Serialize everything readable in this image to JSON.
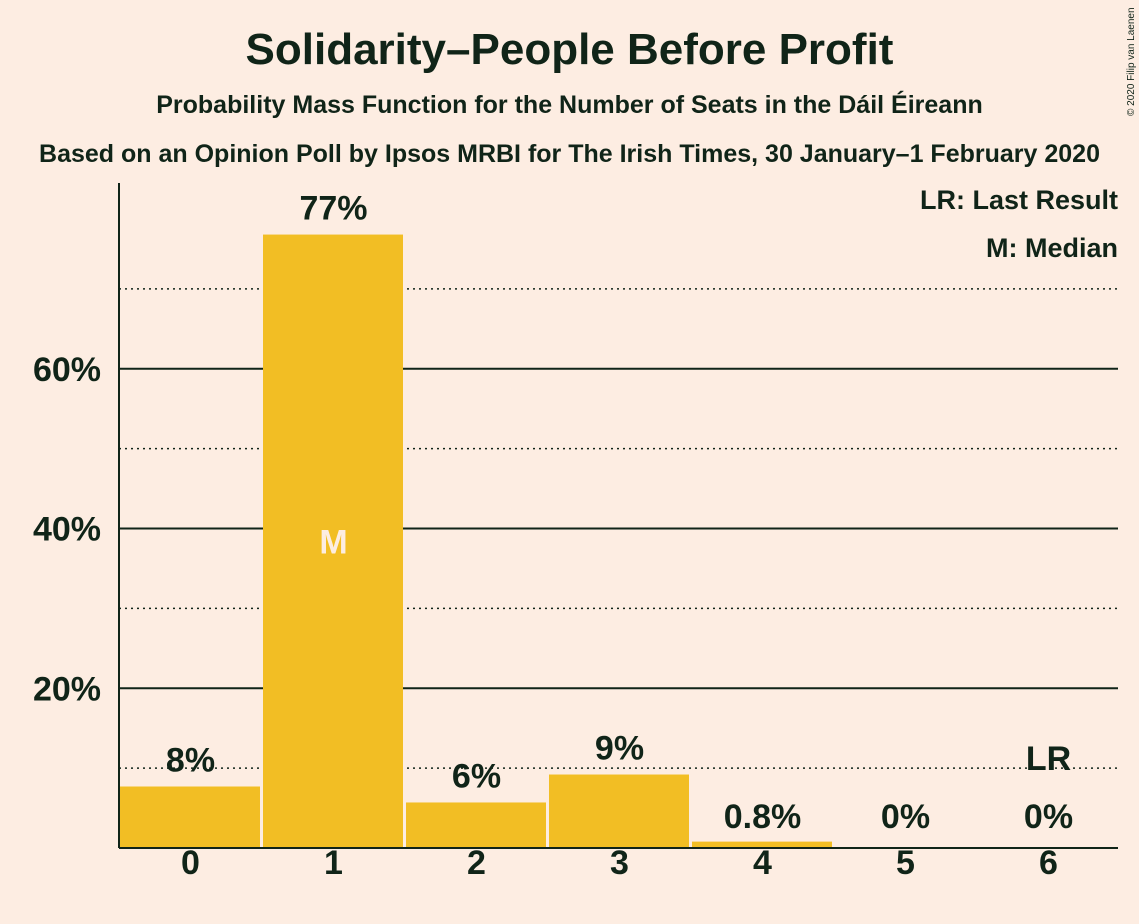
{
  "title": "Solidarity–People Before Profit",
  "subtitle": "Probability Mass Function for the Number of Seats in the Dáil Éireann",
  "source": "Based on an Opinion Poll by Ipsos MRBI for The Irish Times, 30 January–1 February 2020",
  "copyright": "© 2020 Filip van Laenen",
  "legend": {
    "last_result": "LR: Last Result",
    "median": "M: Median"
  },
  "colors": {
    "background": "#fdede2",
    "bar": "#f2be24",
    "text": "#102418"
  },
  "chart_data": {
    "type": "bar",
    "title": "Solidarity–People Before Profit",
    "categories": [
      "0",
      "1",
      "2",
      "3",
      "4",
      "5",
      "6"
    ],
    "values": [
      7.7,
      76.8,
      5.7,
      9.2,
      0.8,
      0,
      0
    ],
    "data_labels": [
      "8%",
      "77%",
      "6%",
      "9%",
      "0.8%",
      "0%",
      "0%"
    ],
    "median_index": 1,
    "median_marker": "M",
    "last_result_index": 6,
    "last_result_marker": "LR",
    "ylim": [
      0,
      80
    ],
    "y_ticks": [
      {
        "value": 20,
        "label": "20%"
      },
      {
        "value": 40,
        "label": "40%"
      },
      {
        "value": 60,
        "label": "60%"
      }
    ],
    "y_minor_gridlines": [
      10,
      30,
      50,
      70
    ],
    "grid": true,
    "legend_position": "top-right"
  }
}
